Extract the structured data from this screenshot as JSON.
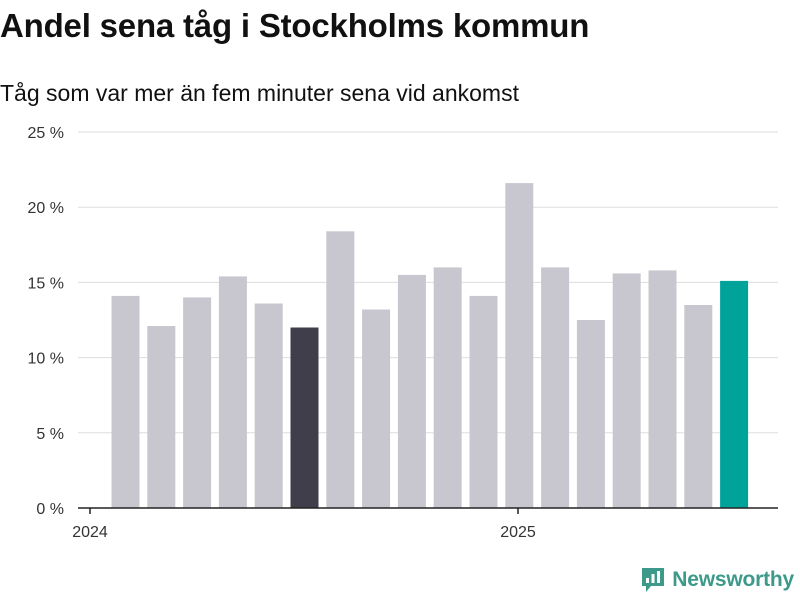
{
  "header": {
    "title": "Andel sena tåg i Stockholms kommun",
    "subtitle": "Tåg som var mer än fem minuter sena vid ankomst"
  },
  "brand": {
    "label": "Newsworthy",
    "color": "#3d9a8b"
  },
  "colors": {
    "bar_default": "#c8c7d0",
    "bar_highlight_dark": "#3f3e4a",
    "bar_highlight_accent": "#00a39a",
    "grid": "#dddddd",
    "axis": "#222222"
  },
  "chart_data": {
    "type": "bar",
    "title": "Andel sena tåg i Stockholms kommun",
    "subtitle": "Tåg som var mer än fem minuter sena vid ankomst",
    "xlabel": "",
    "ylabel": "",
    "x_tick_labels": [
      "2024",
      "2025"
    ],
    "y_ticks": [
      0,
      5,
      10,
      15,
      20,
      25
    ],
    "y_tick_labels": [
      "0 %",
      "5 %",
      "10 %",
      "15 %",
      "20 %",
      "25 %"
    ],
    "ylim": [
      0,
      25
    ],
    "grid": true,
    "values": [
      14.1,
      12.1,
      14.0,
      15.4,
      13.6,
      12.0,
      18.4,
      13.2,
      15.5,
      16.0,
      14.1,
      21.6,
      16.0,
      12.5,
      15.6,
      15.8,
      13.5,
      15.1
    ],
    "highlights": {
      "5": "dark",
      "17": "accent"
    }
  }
}
